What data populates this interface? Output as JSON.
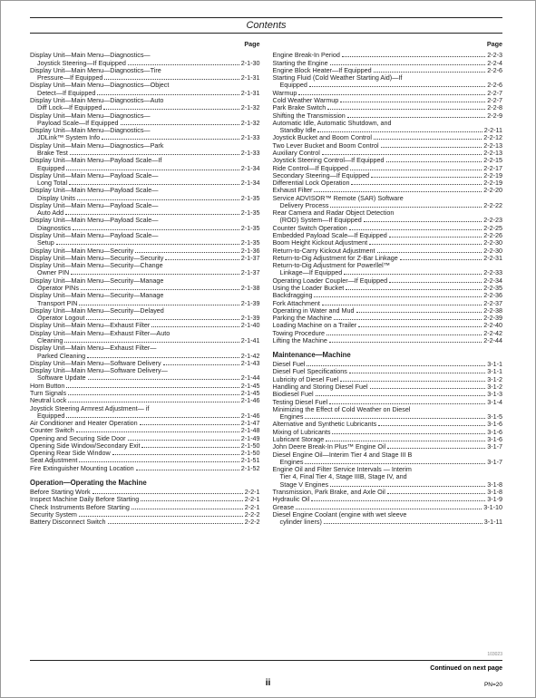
{
  "header": {
    "title": "Contents",
    "pageLabel": "Page"
  },
  "footer": {
    "continued": "Continued on next page",
    "roman": "ii",
    "pn": "PN=20",
    "tinyid": "103023"
  },
  "left": [
    {
      "type": "hdr"
    },
    {
      "l": "Display Unit—Main Menu—Diagnostics—"
    },
    {
      "l": "Joystick Steering—If Equipped",
      "p": "2-1-30",
      "i": true
    },
    {
      "l": "Display Unit—Main Menu—Diagnostics—Tire"
    },
    {
      "l": "Pressure—If Equipped",
      "p": "2-1-31",
      "i": true
    },
    {
      "l": "Display Unit—Main Menu—Diagnostics—Object"
    },
    {
      "l": "Detect—If Equipped",
      "p": "2-1-31",
      "i": true
    },
    {
      "l": "Display Unit—Main Menu—Diagnostics—Auto"
    },
    {
      "l": "Diff Lock—If Equipped",
      "p": "2-1-32",
      "i": true
    },
    {
      "l": "Display Unit—Main Menu—Diagnostics—"
    },
    {
      "l": "Payload Scale—If Equipped",
      "p": "2-1-32",
      "i": true
    },
    {
      "l": "Display Unit—Main Menu—Diagnostics—"
    },
    {
      "l": "JDLink™ System Info",
      "p": "2-1-33",
      "i": true
    },
    {
      "l": "Display Unit—Main Menu—Diagnostics—Park"
    },
    {
      "l": "Brake Test",
      "p": "2-1-33",
      "i": true
    },
    {
      "l": "Display Unit—Main Menu—Payload Scale—If"
    },
    {
      "l": "Equipped",
      "p": "2-1-34",
      "i": true
    },
    {
      "l": "Display Unit—Main Menu—Payload Scale—"
    },
    {
      "l": "Long Total",
      "p": "2-1-34",
      "i": true
    },
    {
      "l": "Display Unit—Main Menu—Payload Scale—"
    },
    {
      "l": "Display Units",
      "p": "2-1-35",
      "i": true
    },
    {
      "l": "Display Unit—Main Menu—Payload Scale—"
    },
    {
      "l": "Auto Add",
      "p": "2-1-35",
      "i": true
    },
    {
      "l": "Display Unit—Main Menu—Payload Scale—"
    },
    {
      "l": "Diagnostics",
      "p": "2-1-35",
      "i": true
    },
    {
      "l": "Display Unit—Main Menu—Payload Scale—"
    },
    {
      "l": "Setup",
      "p": "2-1-35",
      "i": true
    },
    {
      "l": "Display Unit—Main Menu—Security",
      "p": "2-1-36"
    },
    {
      "l": "Display Unit—Main Menu—Security—Security",
      "p": "2-1-37"
    },
    {
      "l": "Display Unit—Main Menu—Security—Change"
    },
    {
      "l": "Owner PIN",
      "p": "2-1-37",
      "i": true
    },
    {
      "l": "Display Unit—Main Menu—Security—Manage"
    },
    {
      "l": "Operator PINs",
      "p": "2-1-38",
      "i": true
    },
    {
      "l": "Display Unit—Main Menu—Security—Manage"
    },
    {
      "l": "Transport PIN",
      "p": "2-1-39",
      "i": true
    },
    {
      "l": "Display Unit—Main Menu—Security—Delayed"
    },
    {
      "l": "Operator Logout",
      "p": "2-1-39",
      "i": true
    },
    {
      "l": "Display Unit—Main Menu—Exhaust Filter",
      "p": "2-1-40"
    },
    {
      "l": "Display Unit—Main Menu—Exhaust Filter—Auto"
    },
    {
      "l": "Cleaning",
      "p": "2-1-41",
      "i": true
    },
    {
      "l": "Display Unit—Main Menu—Exhaust Filter—"
    },
    {
      "l": "Parked Cleaning",
      "p": "2-1-42",
      "i": true
    },
    {
      "l": "Display Unit—Main Menu—Software Delivery",
      "p": "2-1-43"
    },
    {
      "l": "Display Unit—Main Menu—Software Delivery—"
    },
    {
      "l": "Software Update",
      "p": "2-1-44",
      "i": true
    },
    {
      "l": "Horn Button",
      "p": "2-1-45"
    },
    {
      "l": "Turn Signals",
      "p": "2-1-45"
    },
    {
      "l": "Neutral Lock",
      "p": "2-1-46"
    },
    {
      "l": "Joystick Steering Armrest Adjustment— if"
    },
    {
      "l": "Equipped",
      "p": "2-1-46",
      "i": true
    },
    {
      "l": "Air Conditioner and Heater Operation",
      "p": "2-1-47"
    },
    {
      "l": "Counter Switch",
      "p": "2-1-48"
    },
    {
      "l": "Opening and Securing Side Door",
      "p": "2-1-49"
    },
    {
      "l": "Opening Side Window/Secondary Exit",
      "p": "2-1-50"
    },
    {
      "l": "Opening Rear Side Window",
      "p": "2-1-50"
    },
    {
      "l": "Seat Adjustment",
      "p": "2-1-51"
    },
    {
      "l": "Fire Extinguisher Mounting Location",
      "p": "2-1-52"
    },
    {
      "type": "section",
      "l": "Operation—Operating the Machine"
    },
    {
      "l": "Before Starting Work",
      "p": "2-2-1"
    },
    {
      "l": "Inspect Machine Daily Before Starting",
      "p": "2-2-1"
    },
    {
      "l": "Check Instruments Before Starting",
      "p": "2-2-1"
    },
    {
      "l": "Security System",
      "p": "2-2-2"
    },
    {
      "l": "Battery Disconnect Switch",
      "p": "2-2-2"
    }
  ],
  "right": [
    {
      "type": "hdr"
    },
    {
      "l": "Engine Break-In Period",
      "p": "2-2-3"
    },
    {
      "l": "Starting the Engine",
      "p": "2-2-4"
    },
    {
      "l": "Engine Block Heater—If Equipped",
      "p": "2-2-6"
    },
    {
      "l": "Starting Fluid (Cold Weather Starting Aid)—If"
    },
    {
      "l": "Equipped",
      "p": "2-2-6",
      "i": true
    },
    {
      "l": "Warmup",
      "p": "2-2-7"
    },
    {
      "l": "Cold Weather Warmup",
      "p": "2-2-7"
    },
    {
      "l": "Park Brake Switch",
      "p": "2-2-8"
    },
    {
      "l": "Shifting the Transmission",
      "p": "2-2-9"
    },
    {
      "l": "Automatic Idle, Automatic Shutdown, and"
    },
    {
      "l": "Standby Idle",
      "p": "2-2-11",
      "i": true
    },
    {
      "l": "Joystick Bucket and Boom Control",
      "p": "2-2-12"
    },
    {
      "l": "Two Lever Bucket and Boom Control",
      "p": "2-2-13"
    },
    {
      "l": "Auxiliary Control",
      "p": "2-2-13"
    },
    {
      "l": "Joystick Steering Control—If Equipped",
      "p": "2-2-15"
    },
    {
      "l": "Ride Control—If Equipped",
      "p": "2-2-17"
    },
    {
      "l": "Secondary Steering—If Equipped",
      "p": "2-2-19"
    },
    {
      "l": "Differential Lock Operation",
      "p": "2-2-19"
    },
    {
      "l": "Exhaust Filter",
      "p": "2-2-20"
    },
    {
      "l": "Service ADVISOR™ Remote (SAR) Software"
    },
    {
      "l": "Delivery Process",
      "p": "2-2-22",
      "i": true
    },
    {
      "l": "Rear Camera and Radar Object Detection"
    },
    {
      "l": "(ROD) System—If Equipped",
      "p": "2-2-23",
      "i": true
    },
    {
      "l": "Counter Switch Operation",
      "p": "2-2-25"
    },
    {
      "l": "Embedded Payload Scale—If Equipped",
      "p": "2-2-26"
    },
    {
      "l": "Boom Height Kickout Adjustment",
      "p": "2-2-30"
    },
    {
      "l": "Return-to-Carry Kickout Adjustment",
      "p": "2-2-30"
    },
    {
      "l": "Return-to-Dig Adjustment for Z-Bar Linkage",
      "p": "2-2-31"
    },
    {
      "l": "Return-to-Dig Adjustment for Powerllel™"
    },
    {
      "l": "Linkage—If Equipped",
      "p": "2-2-33",
      "i": true
    },
    {
      "l": "Operating Loader Coupler—If Equipped",
      "p": "2-2-34"
    },
    {
      "l": "Using the Loader Bucket",
      "p": "2-2-35"
    },
    {
      "l": "Backdragging",
      "p": "2-2-36"
    },
    {
      "l": "Fork Attachment",
      "p": "2-2-37"
    },
    {
      "l": "Operating in Water and Mud",
      "p": "2-2-38"
    },
    {
      "l": "Parking the Machine",
      "p": "2-2-39"
    },
    {
      "l": "Loading Machine on a Trailer",
      "p": "2-2-40"
    },
    {
      "l": "Towing Procedure",
      "p": "2-2-42"
    },
    {
      "l": "Lifting the Machine",
      "p": "2-2-44"
    },
    {
      "type": "section",
      "l": "Maintenance—Machine"
    },
    {
      "l": "Diesel Fuel",
      "p": "3-1-1"
    },
    {
      "l": "Diesel Fuel Specifications",
      "p": "3-1-1"
    },
    {
      "l": "Lubricity of Diesel Fuel",
      "p": "3-1-2"
    },
    {
      "l": "Handling and Storing Diesel Fuel",
      "p": "3-1-2"
    },
    {
      "l": "Biodiesel Fuel",
      "p": "3-1-3"
    },
    {
      "l": "Testing Diesel Fuel",
      "p": "3-1-4"
    },
    {
      "l": "Minimizing the Effect of Cold Weather on Diesel"
    },
    {
      "l": "Engines",
      "p": "3-1-5",
      "i": true
    },
    {
      "l": "Alternative and Synthetic Lubricants",
      "p": "3-1-6"
    },
    {
      "l": "Mixing of Lubricants",
      "p": "3-1-6"
    },
    {
      "l": "Lubricant Storage",
      "p": "3-1-6"
    },
    {
      "l": "John Deere Break-In Plus™ Engine Oil",
      "p": "3-1-7"
    },
    {
      "l": "Diesel Engine Oil—Interim Tier 4 and Stage III B"
    },
    {
      "l": "Engines",
      "p": "3-1-7",
      "i": true
    },
    {
      "l": "Engine Oil and Filter Service Intervals — Interim"
    },
    {
      "l": "Tier 4, Final Tier 4, Stage IIIB, Stage IV, and",
      "i": true
    },
    {
      "l": "Stage V Engines",
      "p": "3-1-8",
      "i": true
    },
    {
      "l": "Transmission, Park Brake, and Axle Oil",
      "p": "3-1-8"
    },
    {
      "l": "Hydraulic Oil",
      "p": "3-1-9"
    },
    {
      "l": "Grease",
      "p": "3-1-10"
    },
    {
      "l": "Diesel Engine Coolant (engine with wet sleeve"
    },
    {
      "l": "cylinder liners)",
      "p": "3-1-11",
      "i": true
    }
  ]
}
